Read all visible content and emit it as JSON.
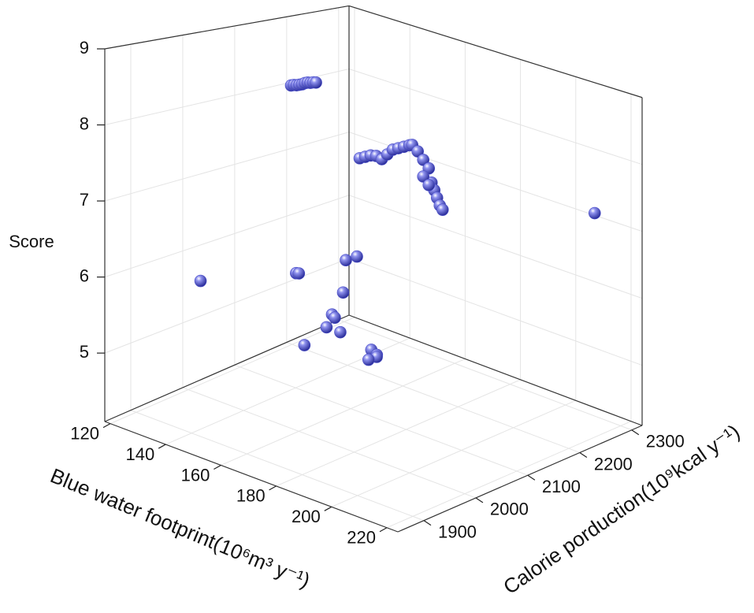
{
  "chart_data": {
    "type": "scatter3d",
    "x_label": "Blue water footprint(10⁶m³ y⁻¹)",
    "y_label": "Calorie porduction(10⁹kcal y⁻¹)",
    "z_label": "Score",
    "xlim": [
      118,
      224
    ],
    "xticks": [
      120,
      140,
      160,
      180,
      200,
      220
    ],
    "ylim": [
      1850,
      2320
    ],
    "yticks": [
      1900,
      2000,
      2100,
      2200,
      2300
    ],
    "zlim": [
      4.1,
      9
    ],
    "zticks": [
      5,
      6,
      7,
      8,
      9
    ],
    "grid": true,
    "color": "#4b4fc9",
    "x": [
      129,
      130,
      131,
      132,
      133,
      134,
      135,
      136,
      137,
      138,
      135,
      137,
      139,
      141,
      143,
      145,
      147,
      149,
      151,
      153,
      154,
      156,
      158,
      160,
      161,
      162,
      163,
      164,
      165,
      158,
      160,
      220,
      147,
      159,
      160,
      177,
      181,
      176,
      172,
      173,
      170,
      175,
      162,
      205,
      207,
      206,
      204
    ],
    "y": [
      2150,
      2150,
      2150,
      2150,
      2150,
      2150,
      2150,
      2150,
      2150,
      2150,
      2250,
      2250,
      2250,
      2250,
      2250,
      2250,
      2250,
      2250,
      2250,
      2250,
      2250,
      2250,
      2250,
      2250,
      2250,
      2250,
      2250,
      2250,
      2250,
      2250,
      2250,
      2250,
      1880,
      2000,
      2000,
      2000,
      2000,
      2000,
      2000,
      2000,
      2000,
      2000,
      2000,
      1900,
      1900,
      1905,
      1900
    ],
    "z": [
      8.2,
      8.22,
      8.23,
      8.25,
      8.27,
      8.3,
      8.32,
      8.33,
      8.35,
      8.36,
      7.0,
      7.05,
      7.1,
      7.12,
      7.1,
      7.2,
      7.3,
      7.35,
      7.4,
      7.45,
      7.47,
      7.4,
      7.3,
      7.2,
      7.0,
      6.9,
      6.8,
      6.7,
      6.65,
      7.05,
      6.95,
      7.36,
      6.25,
      6.24,
      6.25,
      6.65,
      6.75,
      6.2,
      5.85,
      5.82,
      5.65,
      5.65,
      5.3,
      6.04,
      6.0,
      5.95,
      5.9
    ]
  }
}
